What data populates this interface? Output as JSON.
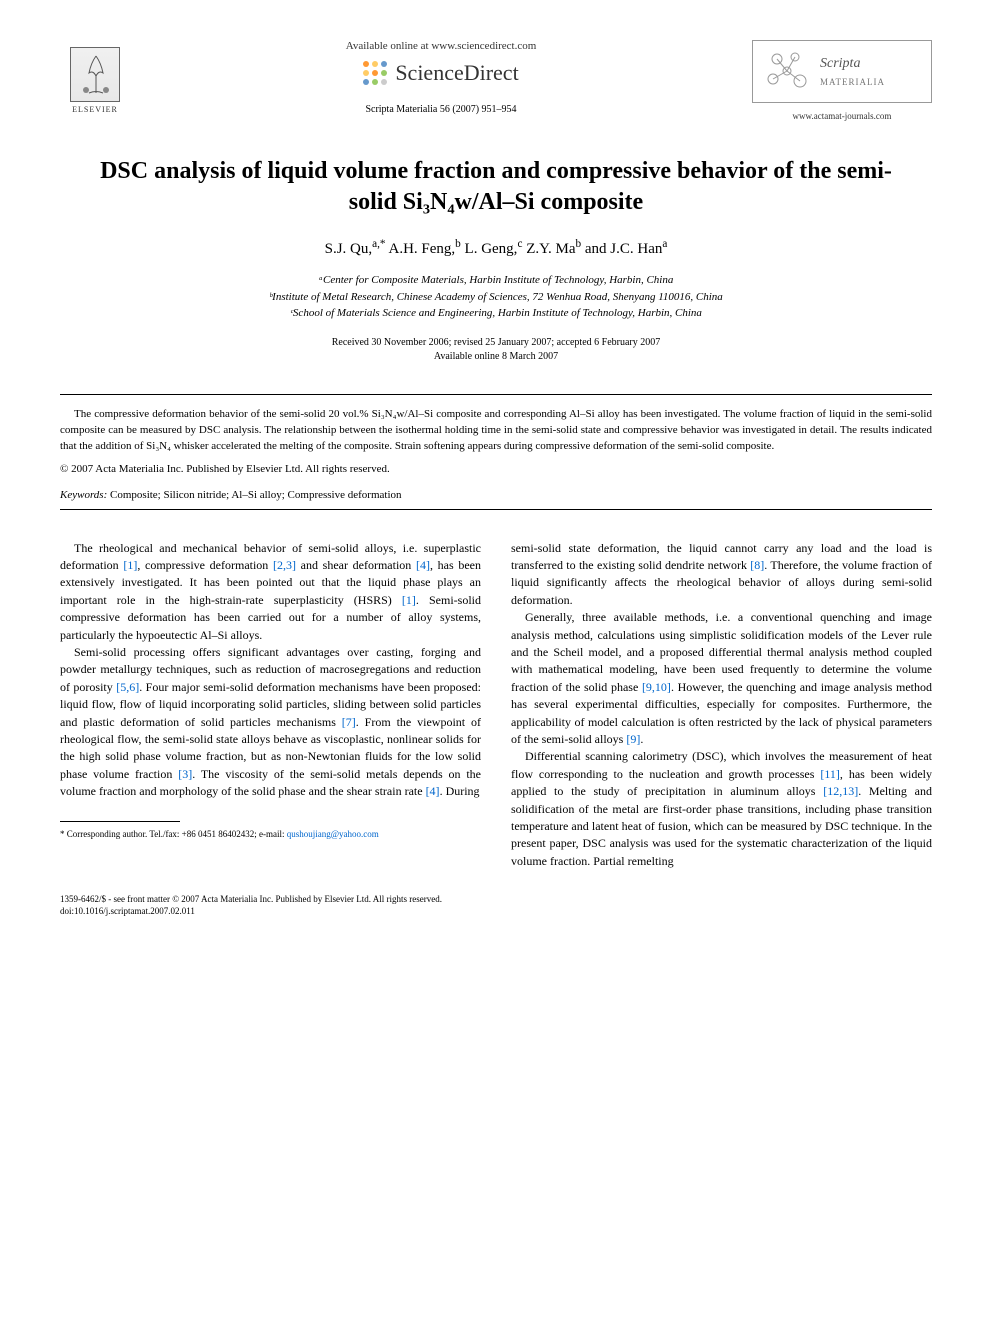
{
  "header": {
    "available_text": "Available online at www.sciencedirect.com",
    "sciencedirect_text": "ScienceDirect",
    "citation": "Scripta Materialia 56 (2007) 951–954",
    "elsevier_label": "ELSEVIER",
    "journal_name_italic": "Scripta",
    "journal_name_caps": "MATERIALIA",
    "journal_url": "www.actamat-journals.com",
    "sd_dot_colors": [
      "#ff9933",
      "#ffcc66",
      "#6699cc",
      "#ffcc66",
      "#ff9933",
      "#99cc66",
      "#6699cc",
      "#99cc66",
      "#cccccc"
    ]
  },
  "title": "DSC analysis of liquid volume fraction and compressive behavior of the semi-solid Si₃N₄w/Al–Si composite",
  "authors_html": "S.J. Qu,<sup>a,*</sup> A.H. Feng,<sup>b</sup> L. Geng,<sup>c</sup> Z.Y. Ma<sup>b</sup> and J.C. Han<sup>a</sup>",
  "affiliations": [
    "ᵃCenter for Composite Materials, Harbin Institute of Technology, Harbin, China",
    "ᵇInstitute of Metal Research, Chinese Academy of Sciences, 72 Wenhua Road, Shenyang 110016, China",
    "ᶜSchool of Materials Science and Engineering, Harbin Institute of Technology, Harbin, China"
  ],
  "dates": {
    "received": "Received 30 November 2006; revised 25 January 2007; accepted 6 February 2007",
    "online": "Available online 8 March 2007"
  },
  "abstract": "The compressive deformation behavior of the semi-solid 20 vol.% Si₃N₄w/Al–Si composite and corresponding Al–Si alloy has been investigated. The volume fraction of liquid in the semi-solid composite can be measured by DSC analysis. The relationship between the isothermal holding time in the semi-solid state and compressive behavior was investigated in detail. The results indicated that the addition of Si₃N₄ whisker accelerated the melting of the composite. Strain softening appears during compressive deformation of the semi-solid composite.",
  "copyright": "© 2007 Acta Materialia Inc. Published by Elsevier Ltd. All rights reserved.",
  "keywords_label": "Keywords:",
  "keywords_text": " Composite; Silicon nitride; Al–Si alloy; Compressive deformation",
  "body": {
    "col1": {
      "p1_pre": "The rheological and mechanical behavior of semi-solid alloys, i.e. superplastic deformation ",
      "ref1": "[1]",
      "p1_mid1": ", compressive deformation ",
      "ref23": "[2,3]",
      "p1_mid2": " and shear deformation ",
      "ref4": "[4]",
      "p1_mid3": ", has been extensively investigated. It has been pointed out that the liquid phase plays an important role in the high-strain-rate superplasticity (HSRS) ",
      "ref1b": "[1]",
      "p1_post": ". Semi-solid compressive deformation has been carried out for a number of alloy systems, particularly the hypoeutectic Al–Si alloys.",
      "p2_pre": "Semi-solid processing offers significant advantages over casting, forging and powder metallurgy techniques, such as reduction of macrosegregations and reduction of porosity ",
      "ref56": "[5,6]",
      "p2_mid1": ". Four major semi-solid deformation mechanisms have been proposed: liquid flow, flow of liquid incorporating solid particles, sliding between solid particles and plastic deformation of solid particles mechanisms ",
      "ref7": "[7]",
      "p2_mid2": ". From the viewpoint of rheological flow, the semi-solid state alloys behave as viscoplastic, nonlinear solids for the high solid phase volume fraction, but as non-Newtonian fluids for the low solid phase volume fraction ",
      "ref3": "[3]",
      "p2_mid3": ". The viscosity of the semi-solid metals depends on the volume fraction and morphology of the solid phase and the shear strain rate ",
      "ref4b": "[4]",
      "p2_post": ". During"
    },
    "col2": {
      "p1_pre": "semi-solid state deformation, the liquid cannot carry any load and the load is transferred to the existing solid dendrite network ",
      "ref8": "[8]",
      "p1_post": ". Therefore, the volume fraction of liquid significantly affects the rheological behavior of alloys during semi-solid deformation.",
      "p2_pre": "Generally, three available methods, i.e. a conventional quenching and image analysis method, calculations using simplistic solidification models of the Lever rule and the Scheil model, and a proposed differential thermal analysis method coupled with mathematical modeling, have been used frequently to determine the volume fraction of the solid phase ",
      "ref910": "[9,10]",
      "p2_mid": ". However, the quenching and image analysis method has several experimental difficulties, especially for composites. Furthermore, the applicability of model calculation is often restricted by the lack of physical parameters of the semi-solid alloys ",
      "ref9": "[9]",
      "p2_post": ".",
      "p3_pre": "Differential scanning calorimetry (DSC), which involves the measurement of heat flow corresponding to the nucleation and growth processes ",
      "ref11": "[11]",
      "p3_mid": ", has been widely applied to the study of precipitation in aluminum alloys ",
      "ref1213": "[12,13]",
      "p3_post": ". Melting and solidification of the metal are first-order phase transitions, including phase transition temperature and latent heat of fusion, which can be measured by DSC technique. In the present paper, DSC analysis was used for the systematic characterization of the liquid volume fraction. Partial remelting"
    }
  },
  "footnote": {
    "label": "* Corresponding author. Tel./fax: +86 0451 86402432; e-mail: ",
    "email": "qushoujiang@yahoo.com"
  },
  "footer": {
    "line1": "1359-6462/$ - see front matter © 2007 Acta Materialia Inc. Published by Elsevier Ltd. All rights reserved.",
    "line2": "doi:10.1016/j.scriptamat.2007.02.011"
  },
  "colors": {
    "link": "#0066cc",
    "text": "#000000",
    "background": "#ffffff"
  }
}
